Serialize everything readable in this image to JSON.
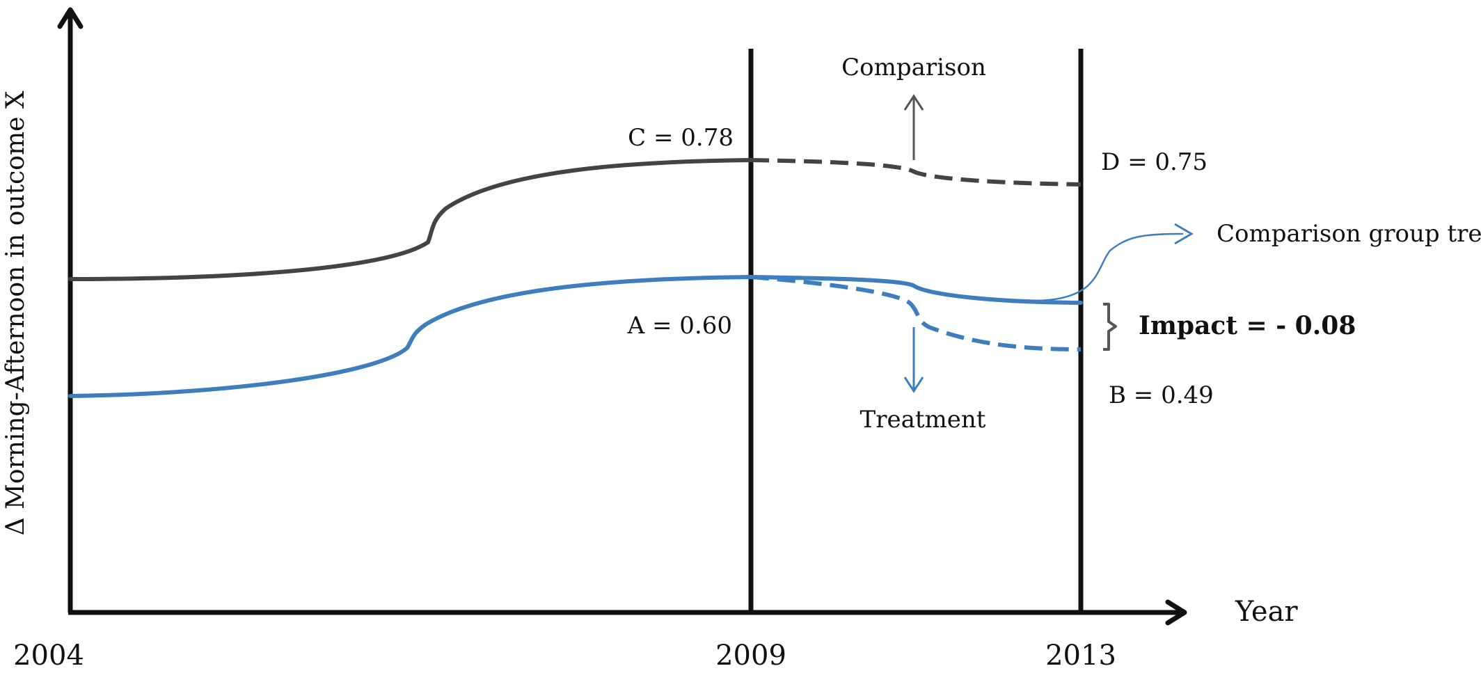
{
  "chart_data": {
    "type": "line",
    "xlabel": "Year",
    "ylabel": "Δ Morning-Afternoon in outcome X",
    "x_ticks": [
      "2004",
      "2009",
      "2013"
    ],
    "series": [
      {
        "group": "comparison",
        "color": "#444444",
        "points": [
          {
            "year": 2004,
            "value": null
          },
          {
            "year": 2009,
            "value": 0.78,
            "label": "C = 0.78"
          },
          {
            "year": 2013,
            "value": 0.75,
            "label": "D = 0.75"
          }
        ]
      },
      {
        "group": "treatment",
        "color": "#3d7ebf",
        "points": [
          {
            "year": 2004,
            "value": null
          },
          {
            "year": 2009,
            "value": 0.6,
            "label": "A = 0.60"
          },
          {
            "year": 2013,
            "value": 0.49,
            "label": "B = 0.49"
          }
        ]
      }
    ],
    "annotations": {
      "comparison": "Comparison",
      "treatment": "Treatment",
      "trend": "Comparison group trend",
      "impact": "Impact = - 0.08",
      "impact_value": -0.08
    }
  }
}
